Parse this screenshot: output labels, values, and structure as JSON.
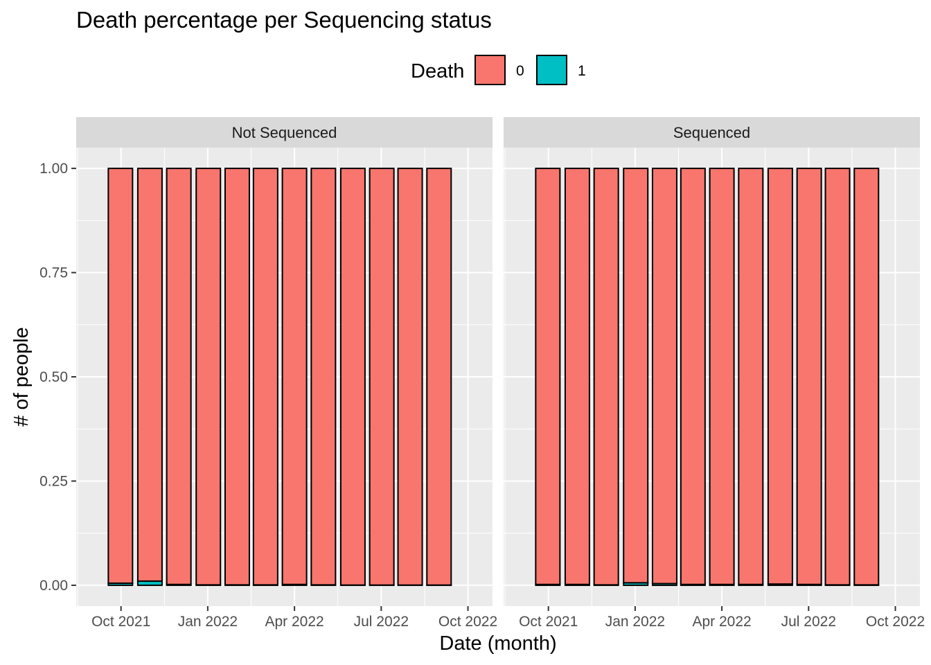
{
  "chart_data": {
    "type": "bar",
    "title": "Death percentage per Sequencing status",
    "xlabel": "Date (month)",
    "ylabel": "# of people",
    "ylim": [
      -0.05,
      1.05
    ],
    "y_ticks": [
      "0.00",
      "0.25",
      "0.50",
      "0.75",
      "1.00"
    ],
    "y_tick_values": [
      0,
      0.25,
      0.5,
      0.75,
      1.0
    ],
    "x_ticks": [
      "Oct 2021",
      "Jan 2022",
      "Apr 2022",
      "Jul 2022",
      "Oct 2022"
    ],
    "x_tick_months": [
      0,
      3,
      6,
      9,
      12
    ],
    "x_range_months": [
      -1.55,
      12.85
    ],
    "legend": {
      "title": "Death",
      "position": "top",
      "entries": [
        {
          "label": "0",
          "color": "#F8766D"
        },
        {
          "label": "1",
          "color": "#00BFC4"
        }
      ]
    },
    "colors": {
      "0": "#F8766D",
      "1": "#00BFC4"
    },
    "panels": [
      {
        "name": "Not Sequenced",
        "months": [
          -0.02,
          1.0,
          2.0,
          3.02,
          4.02,
          5.0,
          6.0,
          7.0,
          8.02,
          9.02,
          10.0,
          11.0
        ],
        "categories": [
          "2021-09",
          "2021-10",
          "2021-11",
          "2021-12",
          "2022-01",
          "2022-02",
          "2022-03",
          "2022-04",
          "2022-05",
          "2022-06",
          "2022-07",
          "2022-08"
        ],
        "series": [
          {
            "name": "0",
            "values": [
              0.995,
              0.99,
              0.998,
              0.999,
              0.999,
              0.999,
              0.998,
              0.999,
              0.9995,
              0.9995,
              0.9995,
              0.9995
            ]
          },
          {
            "name": "1",
            "values": [
              0.005,
              0.01,
              0.002,
              0.001,
              0.001,
              0.001,
              0.002,
              0.001,
              0.0005,
              0.0005,
              0.0005,
              0.0005
            ]
          }
        ]
      },
      {
        "name": "Sequenced",
        "months": [
          -0.02,
          1.0,
          2.0,
          3.02,
          4.02,
          5.0,
          6.0,
          7.0,
          8.02,
          9.02,
          10.0,
          11.0
        ],
        "categories": [
          "2021-09",
          "2021-10",
          "2021-11",
          "2021-12",
          "2022-01",
          "2022-02",
          "2022-03",
          "2022-04",
          "2022-05",
          "2022-06",
          "2022-07",
          "2022-08"
        ],
        "series": [
          {
            "name": "0",
            "values": [
              0.998,
              0.998,
              0.999,
              0.994,
              0.996,
              0.998,
              0.998,
              0.998,
              0.997,
              0.998,
              0.999,
              0.999
            ]
          },
          {
            "name": "1",
            "values": [
              0.002,
              0.002,
              0.001,
              0.006,
              0.004,
              0.002,
              0.002,
              0.002,
              0.003,
              0.002,
              0.001,
              0.001
            ]
          }
        ]
      }
    ]
  }
}
